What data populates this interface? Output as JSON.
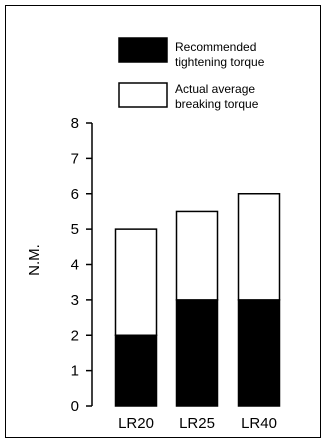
{
  "chart_data": {
    "type": "bar",
    "stacked": true,
    "categories": [
      "LR20",
      "LR25",
      "LR40"
    ],
    "series": [
      {
        "name": "Recommended tightening torque",
        "values": [
          2,
          3,
          3
        ],
        "color": "#000000"
      },
      {
        "name": "Actual average breaking torque",
        "values": [
          3,
          2.5,
          3
        ],
        "color": "#ffffff"
      }
    ],
    "totals": [
      5,
      5.5,
      6
    ],
    "legend": {
      "placement": "top-right",
      "entries": [
        {
          "line1": "Recommended",
          "line2": "tightening torque"
        },
        {
          "line1": "Actual average",
          "line2": "breaking torque"
        }
      ]
    },
    "ylabel": "N.M.",
    "xlabel": "",
    "title": "",
    "ylim": [
      0,
      8
    ],
    "yticks": [
      "0",
      "1",
      "2",
      "3",
      "4",
      "5",
      "6",
      "7",
      "8"
    ],
    "grid": false
  }
}
